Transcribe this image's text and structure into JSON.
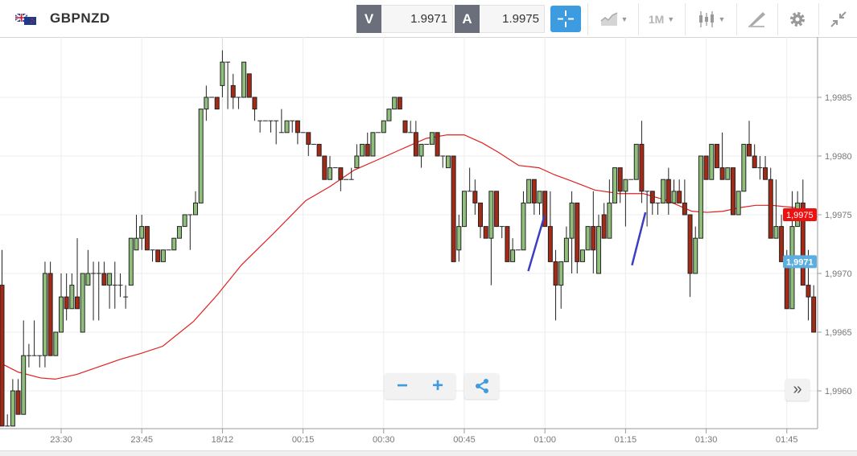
{
  "header": {
    "flag_icon": "gb-nz-flag-icon",
    "symbol": "GBPNZD",
    "bid_label": "V",
    "bid_value": "1.9971",
    "ask_label": "A",
    "ask_value": "1.9975",
    "timeframe": "1M",
    "accent_color": "#3d9be0"
  },
  "chart_data": {
    "type": "candlestick",
    "title": "GBPNZD",
    "timeframe_minutes": 1,
    "x_tick_labels": [
      "23:30",
      "23:45",
      "18/12",
      "00:15",
      "00:30",
      "00:45",
      "01:00",
      "01:15",
      "01:30",
      "01:45"
    ],
    "y_tick_values": [
      1.9985,
      1.998,
      1.9975,
      1.997,
      1.9965,
      1.996
    ],
    "y_tick_labels": [
      "1,9985",
      "1,9980",
      "1,9975",
      "1,9970",
      "1,9965",
      "1,9960"
    ],
    "ylim": [
      1.99562,
      1.99896
    ],
    "current_ask_label": "1,9975",
    "current_ask": 1.9975,
    "current_bid_label": "1,9971",
    "current_bid": 1.9971,
    "colors": {
      "up": "#8fbf7a",
      "down": "#a52a16",
      "ma": "#e02020",
      "trendline": "#3a3fc0",
      "ask_tag": "#ee1111",
      "bid_tag": "#5aaee0"
    },
    "candles_ohlc": [
      [
        1.9969,
        1.9972,
        1.9957,
        1.9957
      ],
      [
        1.9957,
        1.9958,
        1.9957,
        1.9957
      ],
      [
        1.9957,
        1.9961,
        1.9957,
        1.996
      ],
      [
        1.996,
        1.9961,
        1.9958,
        1.9958
      ],
      [
        1.9958,
        1.9966,
        1.9958,
        1.9963
      ],
      [
        1.9963,
        1.9964,
        1.9962,
        1.9963
      ],
      [
        1.9963,
        1.9966,
        1.9963,
        1.9963
      ],
      [
        1.9963,
        1.9963,
        1.9962,
        1.9963
      ],
      [
        1.9963,
        1.9971,
        1.9962,
        1.997
      ],
      [
        1.997,
        1.9971,
        1.9963,
        1.9963
      ],
      [
        1.9963,
        1.9965,
        1.9963,
        1.9965
      ],
      [
        1.9965,
        1.997,
        1.9965,
        1.9968
      ],
      [
        1.9968,
        1.997,
        1.9966,
        1.9967
      ],
      [
        1.9967,
        1.997,
        1.9967,
        1.9969
      ],
      [
        1.9968,
        1.9973,
        1.9967,
        1.9967
      ],
      [
        1.9965,
        1.997,
        1.9965,
        1.997
      ],
      [
        1.9969,
        1.9972,
        1.9969,
        1.997
      ],
      [
        1.997,
        1.9971,
        1.9966,
        1.997
      ],
      [
        1.997,
        1.9971,
        1.9966,
        1.997
      ],
      [
        1.997,
        1.9971,
        1.9969,
        1.9969
      ],
      [
        1.9969,
        1.997,
        1.9967,
        1.997
      ],
      [
        1.9969,
        1.9971,
        1.9967,
        1.9969
      ],
      [
        1.9969,
        1.997,
        1.9968,
        1.9969
      ],
      [
        1.9968,
        1.9969,
        1.9967,
        1.9968
      ],
      [
        1.9969,
        1.9973,
        1.9969,
        1.9973
      ],
      [
        1.9972,
        1.9975,
        1.9972,
        1.9973
      ],
      [
        1.9973,
        1.9975,
        1.9972,
        1.9974
      ],
      [
        1.9974,
        1.9974,
        1.9972,
        1.9972
      ],
      [
        1.9972,
        1.9972,
        1.9971,
        1.9972
      ],
      [
        1.9972,
        1.9972,
        1.9971,
        1.9971
      ],
      [
        1.9971,
        1.9972,
        1.9971,
        1.9972
      ],
      [
        1.9972,
        1.9972,
        1.9972,
        1.9972
      ],
      [
        1.9972,
        1.9973,
        1.9972,
        1.9973
      ],
      [
        1.9973,
        1.9974,
        1.9973,
        1.9974
      ],
      [
        1.9974,
        1.9975,
        1.9974,
        1.9975
      ],
      [
        1.9975,
        1.9975,
        1.9972,
        1.9975
      ],
      [
        1.9975,
        1.9977,
        1.9975,
        1.9976
      ],
      [
        1.9976,
        1.9984,
        1.9976,
        1.9984
      ],
      [
        1.9984,
        1.9986,
        1.9983,
        1.9985
      ],
      [
        1.9985,
        1.9985,
        1.9985,
        1.9985
      ],
      [
        1.9985,
        1.9985,
        1.9984,
        1.9984
      ],
      [
        1.9986,
        1.9989,
        1.9985,
        1.9988
      ],
      [
        1.9988,
        1.9988,
        1.9984,
        1.9988
      ],
      [
        1.9986,
        1.9987,
        1.9984,
        1.9985
      ],
      [
        1.9985,
        1.9985,
        1.9984,
        1.9985
      ],
      [
        1.9985,
        1.9988,
        1.9985,
        1.9988
      ],
      [
        1.9987,
        1.9987,
        1.9985,
        1.9985
      ],
      [
        1.9985,
        1.9985,
        1.9983,
        1.9984
      ],
      [
        1.9983,
        1.9983,
        1.9982,
        1.9983
      ],
      [
        1.9983,
        1.9983,
        1.9983,
        1.9983
      ],
      [
        1.9983,
        1.9983,
        1.9982,
        1.9983
      ],
      [
        1.9983,
        1.9983,
        1.9981,
        1.9983
      ],
      [
        1.9982,
        1.9984,
        1.9982,
        1.9982
      ],
      [
        1.9982,
        1.9983,
        1.9982,
        1.9983
      ],
      [
        1.9983,
        1.9983,
        1.9982,
        1.9983
      ],
      [
        1.9983,
        1.9983,
        1.9981,
        1.9982
      ],
      [
        1.9982,
        1.9982,
        1.9982,
        1.9982
      ],
      [
        1.9982,
        1.9982,
        1.998,
        1.9981
      ],
      [
        1.9981,
        1.9981,
        1.9981,
        1.9981
      ],
      [
        1.9981,
        1.9981,
        1.998,
        1.998
      ],
      [
        1.998,
        1.998,
        1.9978,
        1.9978
      ],
      [
        1.9978,
        1.998,
        1.9978,
        1.9979
      ],
      [
        1.9979,
        1.9979,
        1.9979,
        1.9979
      ],
      [
        1.9979,
        1.9979,
        1.9977,
        1.9978
      ],
      [
        1.9978,
        1.9978,
        1.9978,
        1.9978
      ],
      [
        1.9978,
        1.9979,
        1.9978,
        1.9978
      ],
      [
        1.9979,
        1.9981,
        1.9979,
        1.998
      ],
      [
        1.998,
        1.9981,
        1.998,
        1.9981
      ],
      [
        1.9981,
        1.9982,
        1.998,
        1.998
      ],
      [
        1.998,
        1.9982,
        1.998,
        1.9982
      ],
      [
        1.9982,
        1.9982,
        1.9982,
        1.9982
      ],
      [
        1.9982,
        1.9983,
        1.9982,
        1.9983
      ],
      [
        1.9983,
        1.9984,
        1.9983,
        1.9984
      ],
      [
        1.9984,
        1.9985,
        1.9984,
        1.9985
      ],
      [
        1.9985,
        1.9985,
        1.9984,
        1.9984
      ],
      [
        1.9983,
        1.9983,
        1.9982,
        1.9982
      ],
      [
        1.9982,
        1.9983,
        1.9982,
        1.9982
      ],
      [
        1.9982,
        1.9983,
        1.998,
        1.998
      ],
      [
        1.998,
        1.9981,
        1.9979,
        1.9981
      ],
      [
        1.9981,
        1.9981,
        1.9981,
        1.9981
      ],
      [
        1.9981,
        1.9982,
        1.9981,
        1.9982
      ],
      [
        1.9982,
        1.9982,
        1.998,
        1.998
      ],
      [
        1.998,
        1.998,
        1.9979,
        1.998
      ],
      [
        1.9979,
        1.998,
        1.9979,
        1.998
      ],
      [
        1.998,
        1.998,
        1.9971,
        1.9971
      ],
      [
        1.9972,
        1.9975,
        1.9971,
        1.9974
      ],
      [
        1.9974,
        1.9977,
        1.9974,
        1.9977
      ],
      [
        1.9977,
        1.9979,
        1.9977,
        1.9977
      ],
      [
        1.9977,
        1.9978,
        1.9975,
        1.9976
      ],
      [
        1.9976,
        1.9976,
        1.9973,
        1.9974
      ],
      [
        1.9974,
        1.9974,
        1.9973,
        1.9973
      ],
      [
        1.9973,
        1.9977,
        1.9969,
        1.9977
      ],
      [
        1.9977,
        1.9977,
        1.9974,
        1.9974
      ],
      [
        1.9974,
        1.9974,
        1.9973,
        1.9974
      ],
      [
        1.9974,
        1.9974,
        1.9971,
        1.9971
      ],
      [
        1.9971,
        1.9973,
        1.9971,
        1.9972
      ],
      [
        1.9972,
        1.9972,
        1.9972,
        1.9972
      ],
      [
        1.9972,
        1.9977,
        1.9972,
        1.9976
      ],
      [
        1.9976,
        1.9978,
        1.9976,
        1.9978
      ],
      [
        1.9978,
        1.9978,
        1.9975,
        1.9976
      ],
      [
        1.9976,
        1.9977,
        1.9975,
        1.9977
      ],
      [
        1.9977,
        1.9977,
        1.9974,
        1.9974
      ],
      [
        1.9974,
        1.9977,
        1.9971,
        1.9971
      ],
      [
        1.9971,
        1.9972,
        1.9966,
        1.9969
      ],
      [
        1.9969,
        1.9971,
        1.9967,
        1.9971
      ],
      [
        1.9971,
        1.9974,
        1.9971,
        1.9973
      ],
      [
        1.9973,
        1.9977,
        1.997,
        1.9976
      ],
      [
        1.9976,
        1.9976,
        1.997,
        1.9971
      ],
      [
        1.9971,
        1.9972,
        1.9971,
        1.9972
      ],
      [
        1.9972,
        1.9974,
        1.9972,
        1.9974
      ],
      [
        1.9974,
        1.9977,
        1.997,
        1.9972
      ],
      [
        1.997,
        1.9975,
        1.997,
        1.9974
      ],
      [
        1.9975,
        1.9976,
        1.9973,
        1.9973
      ],
      [
        1.9973,
        1.9978,
        1.9973,
        1.9976
      ],
      [
        1.9976,
        1.9979,
        1.9976,
        1.9979
      ],
      [
        1.9979,
        1.9979,
        1.9976,
        1.9977
      ],
      [
        1.9977,
        1.9978,
        1.9974,
        1.9978
      ],
      [
        1.9978,
        1.9978,
        1.9978,
        1.9978
      ],
      [
        1.9978,
        1.9981,
        1.9978,
        1.9981
      ],
      [
        1.9981,
        1.9983,
        1.9976,
        1.9977
      ],
      [
        1.9977,
        1.9977,
        1.9974,
        1.9977
      ],
      [
        1.9977,
        1.9977,
        1.9975,
        1.9976
      ],
      [
        1.9976,
        1.9976,
        1.9975,
        1.9976
      ],
      [
        1.9976,
        1.9978,
        1.9976,
        1.9978
      ],
      [
        1.9978,
        1.9979,
        1.9975,
        1.9976
      ],
      [
        1.9976,
        1.9978,
        1.9976,
        1.9977
      ],
      [
        1.9977,
        1.9978,
        1.9976,
        1.9976
      ],
      [
        1.9976,
        1.9978,
        1.9975,
        1.9975
      ],
      [
        1.9975,
        1.9975,
        1.9968,
        1.997
      ],
      [
        1.997,
        1.9974,
        1.997,
        1.9973
      ],
      [
        1.9973,
        1.998,
        1.9973,
        1.998
      ],
      [
        1.998,
        1.998,
        1.9978,
        1.9978
      ],
      [
        1.9978,
        1.9981,
        1.9978,
        1.9981
      ],
      [
        1.9981,
        1.9981,
        1.9979,
        1.9979
      ],
      [
        1.9979,
        1.9982,
        1.9978,
        1.9978
      ],
      [
        1.9978,
        1.9979,
        1.9978,
        1.9979
      ],
      [
        1.9979,
        1.9979,
        1.9975,
        1.9975
      ],
      [
        1.9975,
        1.9977,
        1.9975,
        1.9977
      ],
      [
        1.9977,
        1.9981,
        1.9977,
        1.9981
      ],
      [
        1.9981,
        1.9983,
        1.998,
        1.998
      ],
      [
        1.998,
        1.9981,
        1.9979,
        1.9979
      ],
      [
        1.9979,
        1.998,
        1.9978,
        1.9979
      ],
      [
        1.9979,
        1.998,
        1.9978,
        1.9978
      ],
      [
        1.9978,
        1.9979,
        1.9973,
        1.9973
      ],
      [
        1.9973,
        1.9978,
        1.9973,
        1.9974
      ],
      [
        1.9974,
        1.9975,
        1.9971,
        1.9971
      ],
      [
        1.9971,
        1.9972,
        1.9967,
        1.9967
      ],
      [
        1.9967,
        1.9977,
        1.9967,
        1.9974
      ],
      [
        1.9974,
        1.9977,
        1.9974,
        1.9976
      ],
      [
        1.9976,
        1.9978,
        1.9969,
        1.9969
      ],
      [
        1.9969,
        1.9972,
        1.9966,
        1.9968
      ],
      [
        1.9968,
        1.9969,
        1.9965,
        1.9965
      ]
    ],
    "moving_average": [
      [
        0,
        1.99623
      ],
      [
        3,
        1.99616
      ],
      [
        7.2,
        1.99611
      ],
      [
        9.9,
        1.9961
      ],
      [
        13.9,
        1.99614
      ],
      [
        22.1,
        1.99627
      ],
      [
        25.9,
        1.99632
      ],
      [
        29.9,
        1.99638
      ],
      [
        35.6,
        1.99659
      ],
      [
        40.1,
        1.99682
      ],
      [
        44.5,
        1.99707
      ],
      [
        50.5,
        1.99734
      ],
      [
        56.5,
        1.99762
      ],
      [
        61,
        1.99774
      ],
      [
        65.5,
        1.99788
      ],
      [
        70,
        1.99797
      ],
      [
        74.4,
        1.99806
      ],
      [
        78.9,
        1.99815
      ],
      [
        82.8,
        1.99818
      ],
      [
        86,
        1.99818
      ],
      [
        89.4,
        1.99811
      ],
      [
        92.4,
        1.99803
      ],
      [
        96.1,
        1.99792
      ],
      [
        99.9,
        1.9979
      ],
      [
        102.8,
        1.99784
      ],
      [
        105.8,
        1.99779
      ],
      [
        110.3,
        1.99771
      ],
      [
        114.8,
        1.99768
      ],
      [
        119.3,
        1.99768
      ],
      [
        123.8,
        1.99762
      ],
      [
        128.3,
        1.99753
      ],
      [
        131.2,
        1.99752
      ],
      [
        134.2,
        1.99753
      ],
      [
        137.2,
        1.99756
      ],
      [
        140.2,
        1.99758
      ],
      [
        143.2,
        1.99758
      ],
      [
        147.7,
        1.99756
      ],
      [
        151.6,
        1.99748
      ]
    ],
    "trendlines": [
      [
        [
          97.9,
          1.99702
        ],
        [
          100.9,
          1.99749
        ]
      ],
      [
        [
          117.2,
          1.99707
        ],
        [
          119.7,
          1.99752
        ]
      ]
    ]
  },
  "controls": {
    "zoom_out": "−",
    "zoom_in": "+",
    "scroll_right": "»"
  }
}
